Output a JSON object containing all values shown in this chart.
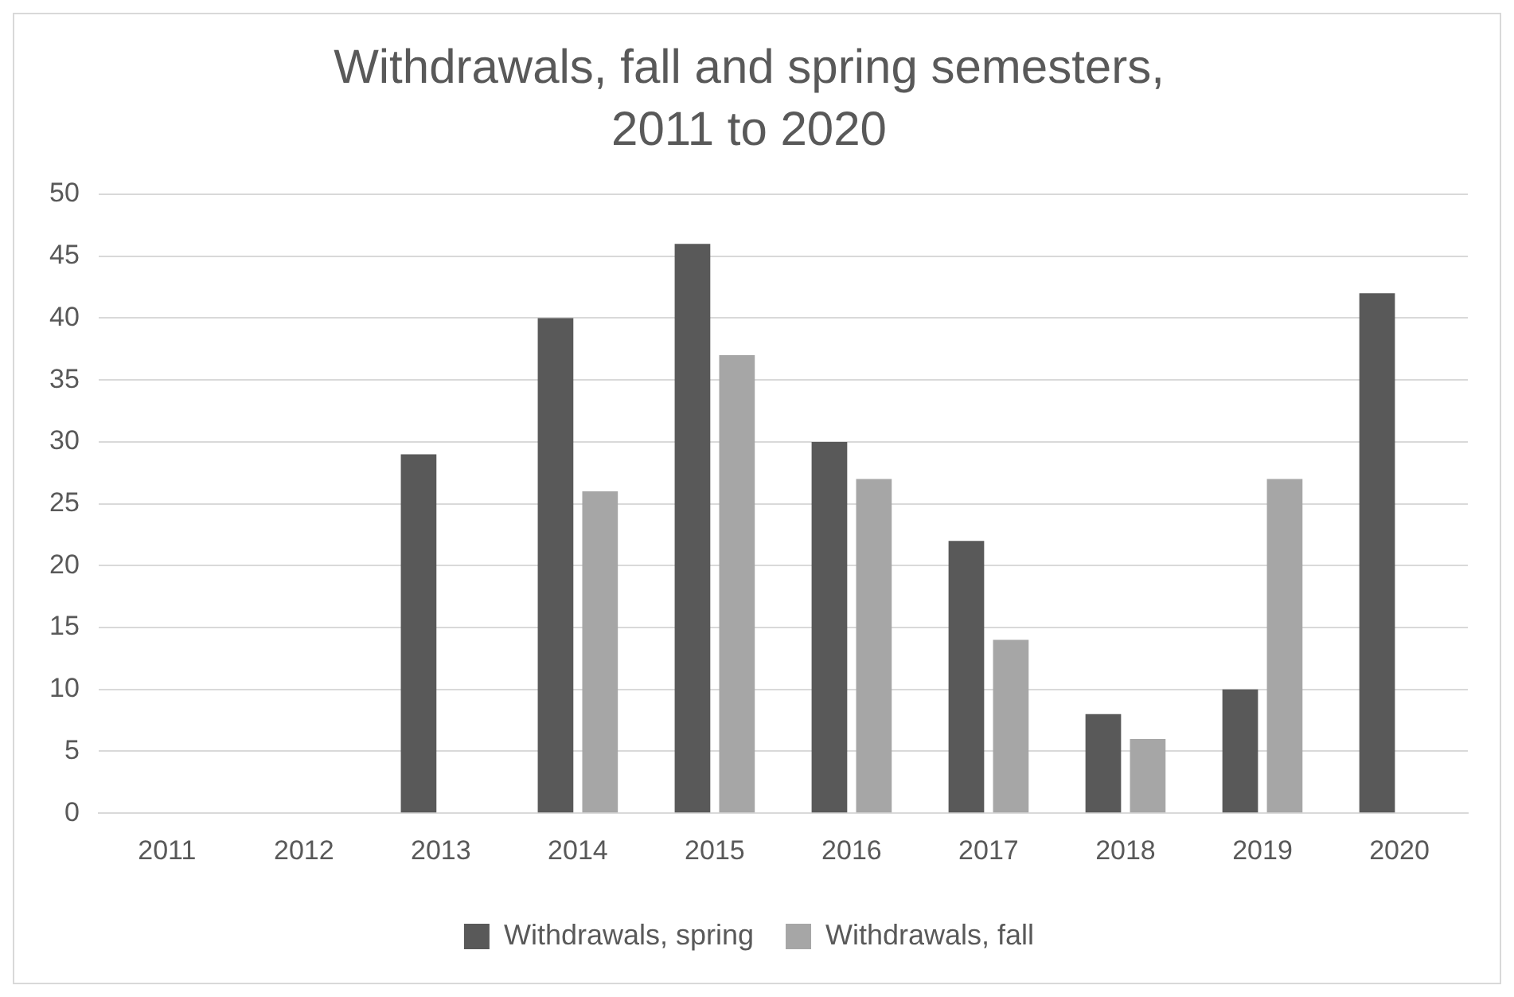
{
  "chart_data": {
    "type": "bar",
    "title": "Withdrawals, fall and spring semesters, 2011 to 2020",
    "categories": [
      "2011",
      "2012",
      "2013",
      "2014",
      "2015",
      "2016",
      "2017",
      "2018",
      "2019",
      "2020"
    ],
    "series": [
      {
        "name": "Withdrawals, spring",
        "color": "#595959",
        "values": [
          null,
          null,
          29,
          40,
          46,
          30,
          22,
          8,
          10,
          42
        ]
      },
      {
        "name": "Withdrawals, fall",
        "color": "#a6a6a6",
        "values": [
          null,
          null,
          null,
          26,
          37,
          27,
          14,
          6,
          27,
          null
        ]
      }
    ],
    "ylim": [
      0,
      50
    ],
    "yticks": [
      0,
      5,
      10,
      15,
      20,
      25,
      30,
      35,
      40,
      45,
      50
    ],
    "grid": "y",
    "legend": "bottom"
  }
}
